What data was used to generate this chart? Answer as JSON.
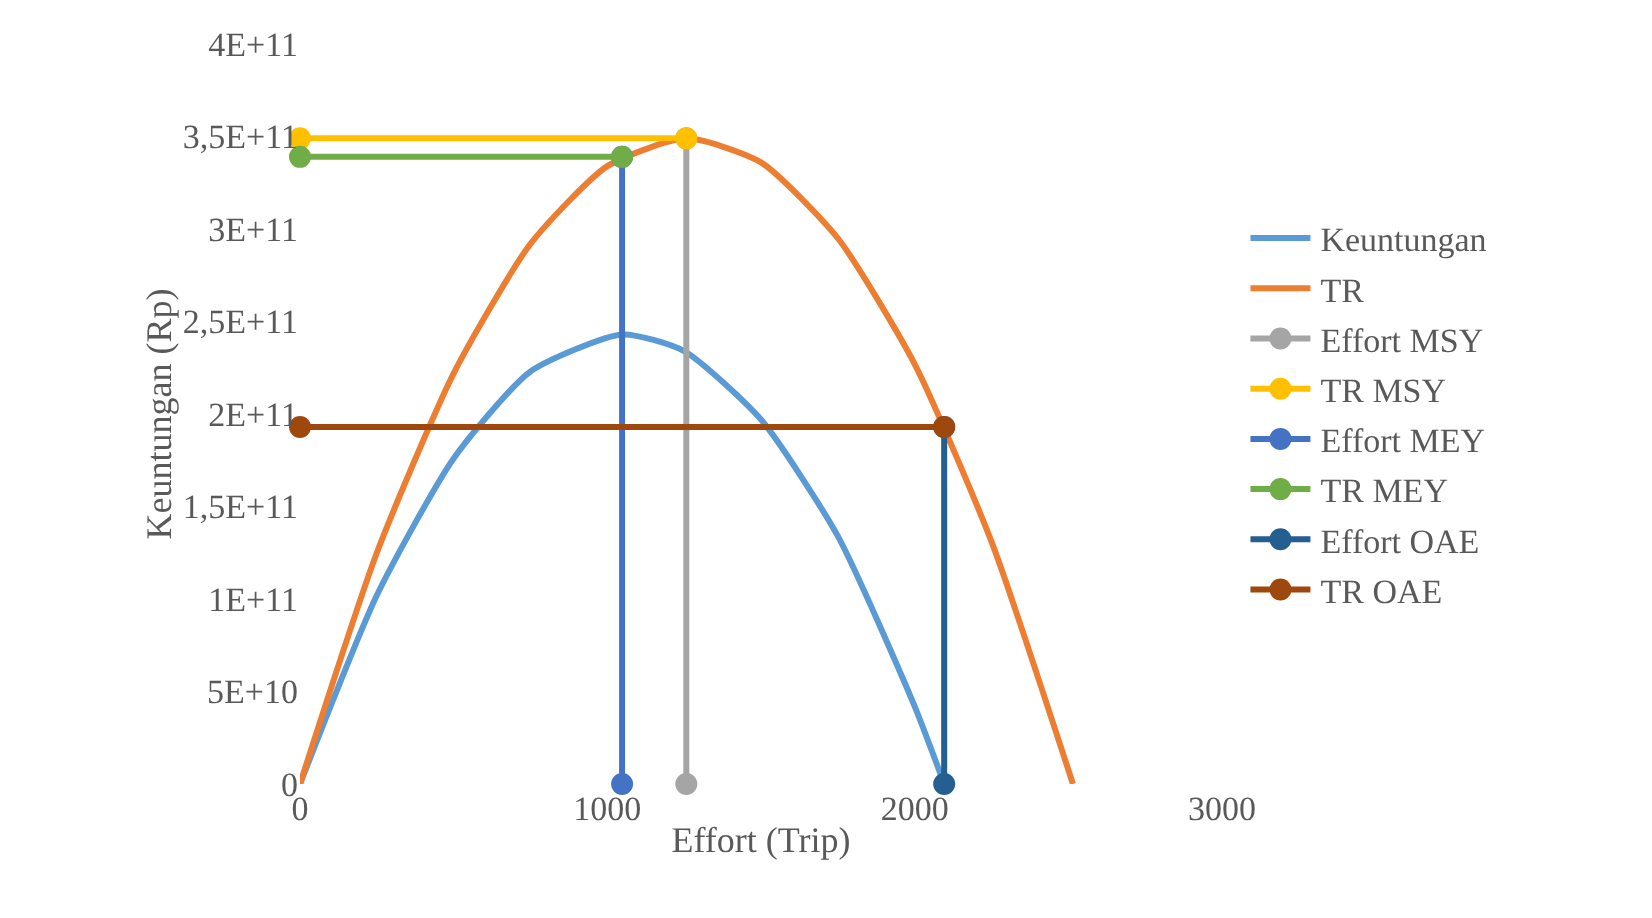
{
  "chart_data": {
    "type": "line",
    "xlabel": "Effort (Trip)",
    "ylabel": "Keuntungan (Rp)",
    "xlim": [
      0,
      3000
    ],
    "xticks": [
      0,
      1000,
      2000,
      3000
    ],
    "ylim": [
      0,
      400000000000
    ],
    "yticks": [
      {
        "value": 0,
        "label": "0"
      },
      {
        "value": 50000000000,
        "label": "5E+10"
      },
      {
        "value": 100000000000,
        "label": "1E+11"
      },
      {
        "value": 150000000000,
        "label": "1,5E+11"
      },
      {
        "value": 200000000000,
        "label": "2E+11"
      },
      {
        "value": 250000000000,
        "label": "2,5E+11"
      },
      {
        "value": 300000000000,
        "label": "3E+11"
      },
      {
        "value": 350000000000,
        "label": "3,5E+11"
      },
      {
        "value": 400000000000,
        "label": "4E+11"
      }
    ],
    "grid": false,
    "legend": "right",
    "line_style": "solid",
    "series": [
      {
        "name": "Keuntungan",
        "color": "#5b9bd5",
        "marker": "none",
        "x": [
          0,
          250,
          500,
          750,
          1048,
          1250,
          1500,
          1750,
          2000,
          2096
        ],
        "values": [
          0,
          102000000000,
          176000000000,
          223000000000,
          243000000000,
          234000000000,
          197000000000,
          134000000000,
          42000000000,
          0
        ]
      },
      {
        "name": "TR",
        "color": "#ed7d31",
        "marker": "none",
        "x": [
          0,
          250,
          500,
          750,
          1000,
          1257,
          1500,
          1750,
          2000,
          2250,
          2515
        ],
        "values": [
          0,
          125000000000,
          222000000000,
          292000000000,
          334000000000,
          349000000000,
          336000000000,
          295000000000,
          227000000000,
          131000000000,
          0
        ]
      },
      {
        "name": "Effort MSY",
        "color": "#a5a5a5",
        "marker": "circle",
        "x": [
          1257,
          1257
        ],
        "values": [
          0,
          349000000000
        ]
      },
      {
        "name": "TR MSY",
        "color": "#ffc000",
        "marker": "circle",
        "x": [
          0,
          1257
        ],
        "values": [
          349000000000,
          349000000000
        ]
      },
      {
        "name": "Effort MEY",
        "color": "#4472c4",
        "marker": "circle",
        "x": [
          1048,
          1048
        ],
        "values": [
          0,
          339000000000
        ]
      },
      {
        "name": "TR MEY",
        "color": "#70ad47",
        "marker": "circle",
        "x": [
          0,
          1048
        ],
        "values": [
          339000000000,
          339000000000
        ]
      },
      {
        "name": "Effort OAE",
        "color": "#255e91",
        "marker": "circle",
        "x": [
          2096,
          2096
        ],
        "values": [
          0,
          193000000000
        ]
      },
      {
        "name": "TR OAE",
        "color": "#9e480e",
        "marker": "circle",
        "x": [
          0,
          2096
        ],
        "values": [
          193000000000,
          193000000000
        ]
      }
    ]
  }
}
